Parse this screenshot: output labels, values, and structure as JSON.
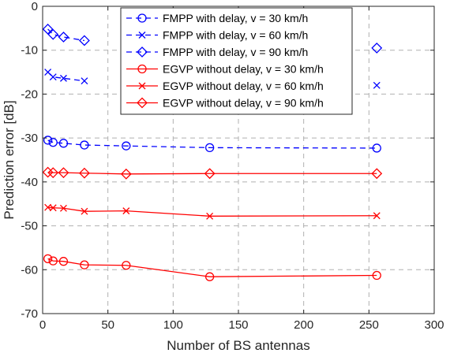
{
  "chart_data": {
    "type": "line",
    "xlabel": "Number of BS antennas",
    "ylabel": "Prediction error [dB]",
    "xlim": [
      0,
      300
    ],
    "ylim": [
      -70,
      0
    ],
    "xticks": [
      0,
      50,
      100,
      150,
      200,
      250,
      300
    ],
    "yticks": [
      0,
      -10,
      -20,
      -30,
      -40,
      -50,
      -60,
      -70
    ],
    "grid": true,
    "legend_position": "top-right",
    "x": [
      4,
      8,
      16,
      32,
      64,
      128,
      256
    ],
    "series": [
      {
        "name": "FMPP with delay, v = 30 km/h",
        "color": "#0000ff",
        "dash": "dashed",
        "marker": "circle",
        "values": [
          -30.5,
          -31.0,
          -31.2,
          -31.6,
          -31.8,
          -32.2,
          -32.3
        ]
      },
      {
        "name": "FMPP with delay, v = 60 km/h",
        "color": "#0000ff",
        "dash": "dashed",
        "marker": "x",
        "values": [
          -15.0,
          -16.1,
          -16.4,
          -17.0,
          null,
          null,
          -18.0
        ]
      },
      {
        "name": "FMPP with delay, v = 90 km/h",
        "color": "#0000ff",
        "dash": "dashed",
        "marker": "diamond",
        "values": [
          -5.2,
          -6.4,
          -7.0,
          -7.8,
          null,
          null,
          -9.5
        ]
      },
      {
        "name": "EGVP without delay, v = 30 km/h",
        "color": "#ff0000",
        "dash": "solid",
        "marker": "circle",
        "values": [
          -57.5,
          -58.0,
          -58.1,
          -58.9,
          -59.0,
          -61.6,
          -61.3
        ]
      },
      {
        "name": "EGVP without delay, v = 60 km/h",
        "color": "#ff0000",
        "dash": "solid",
        "marker": "x",
        "values": [
          -45.8,
          -45.9,
          -46.0,
          -46.7,
          -46.6,
          -47.8,
          -47.7
        ]
      },
      {
        "name": "EGVP without delay, v = 90 km/h",
        "color": "#ff0000",
        "dash": "solid",
        "marker": "diamond",
        "values": [
          -37.8,
          -37.9,
          -37.9,
          -38.0,
          -38.2,
          -38.1,
          -38.1
        ]
      }
    ]
  }
}
